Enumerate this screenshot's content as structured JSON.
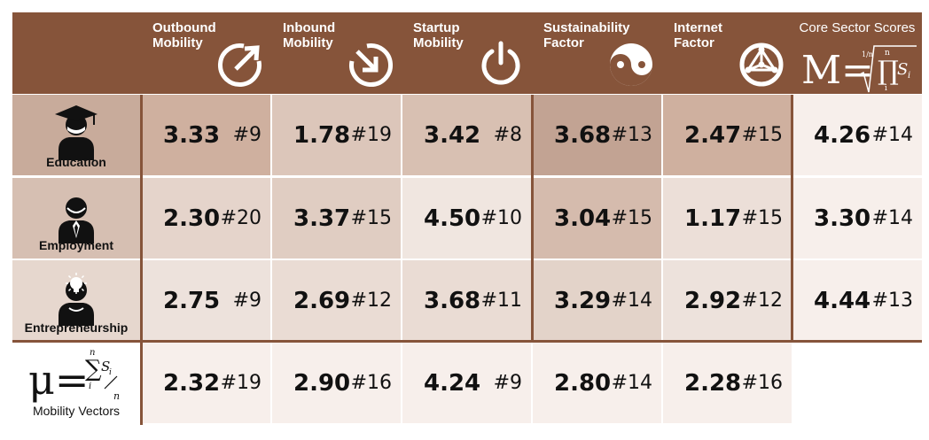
{
  "header": {
    "columns": [
      {
        "line1": "Outbound",
        "line2": "Mobility",
        "icon": "outbound-arrow-icon"
      },
      {
        "line1": "Inbound",
        "line2": "Mobility",
        "icon": "inbound-arrow-icon"
      },
      {
        "line1": "Startup",
        "line2": "Mobility",
        "icon": "power-icon"
      },
      {
        "line1": "Sustainability",
        "line2": "Factor",
        "icon": "yin-yang-icon"
      },
      {
        "line1": "Internet",
        "line2": "Factor",
        "icon": "network-globe-icon"
      }
    ],
    "core": {
      "title": "Core Sector Scores",
      "formula_lhs": "M=",
      "formula_root_index": "1/n",
      "formula_product": "∏",
      "formula_sub": "i",
      "formula_sup": "n",
      "formula_term": "S",
      "formula_term_sub": "i"
    }
  },
  "rows": [
    {
      "label": "Education",
      "icon": "graduate-person-icon",
      "cells": [
        {
          "value": "3.33",
          "rank": "#9"
        },
        {
          "value": "1.78",
          "rank": "#19"
        },
        {
          "value": "3.42",
          "rank": "#8"
        },
        {
          "value": "3.68",
          "rank": "#13"
        },
        {
          "value": "2.47",
          "rank": "#15"
        }
      ],
      "core": {
        "value": "4.26",
        "rank": "#14"
      }
    },
    {
      "label": "Employment",
      "icon": "employee-person-icon",
      "cells": [
        {
          "value": "2.30",
          "rank": "#20"
        },
        {
          "value": "3.37",
          "rank": "#15"
        },
        {
          "value": "4.50",
          "rank": "#10"
        },
        {
          "value": "3.04",
          "rank": "#15"
        },
        {
          "value": "1.17",
          "rank": "#15"
        }
      ],
      "core": {
        "value": "3.30",
        "rank": "#14"
      }
    },
    {
      "label": "Entrepreneurship",
      "icon": "entrepreneur-person-icon",
      "cells": [
        {
          "value": "2.75",
          "rank": "#9"
        },
        {
          "value": "2.69",
          "rank": "#12"
        },
        {
          "value": "3.68",
          "rank": "#11"
        },
        {
          "value": "3.29",
          "rank": "#14"
        },
        {
          "value": "2.92",
          "rank": "#12"
        }
      ],
      "core": {
        "value": "4.44",
        "rank": "#13"
      }
    }
  ],
  "mobility_vectors": {
    "label": "Mobility Vectors",
    "formula_lhs": "μ=",
    "formula_sum": "∑",
    "formula_sup": "n",
    "formula_sub": "i",
    "formula_term": "S",
    "formula_term_sub": "i",
    "formula_denominator": "n",
    "cells": [
      {
        "value": "2.32",
        "rank": "#19"
      },
      {
        "value": "2.90",
        "rank": "#16"
      },
      {
        "value": "4.24",
        "rank": "#9"
      },
      {
        "value": "2.80",
        "rank": "#14"
      },
      {
        "value": "2.28",
        "rank": "#16"
      }
    ]
  },
  "colors": {
    "header_bg": "#86543a",
    "cells": [
      [
        "#cfb09f",
        "#dcc6ba",
        "#d8c0b2",
        "#c2a393",
        "#cfb09f",
        "#f7efeb"
      ],
      [
        "#e5d4cb",
        "#e0cdc2",
        "#f0e6e0",
        "#d5bbad",
        "#ecdfd8",
        "#f7efeb"
      ],
      [
        "#ede2dc",
        "#eadcd4",
        "#eadcd4",
        "#e3d3c9",
        "#ede2dc",
        "#f7efeb"
      ],
      [
        "#f7efeb",
        "#f7efeb",
        "#f7efeb",
        "#f7efeb",
        "#f7efeb",
        "#ffffff"
      ]
    ],
    "row_label_bg": [
      "#c8ab9b",
      "#d6bfb2",
      "#e6d7ce",
      "#ffffff"
    ]
  }
}
